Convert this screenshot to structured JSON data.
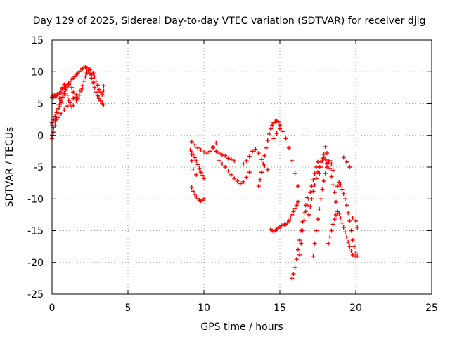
{
  "chart_data": {
    "type": "scatter",
    "title": "Day 129 of 2025, Sidereal Day-to-day VTEC variation (SDTVAR) for receiver djig",
    "xlabel": "GPS time / hours",
    "ylabel": "SDTVAR / TECUs",
    "xlim": [
      0,
      25
    ],
    "ylim": [
      -25,
      15
    ],
    "xticks": [
      0,
      5,
      10,
      15,
      20,
      25
    ],
    "yticks": [
      15,
      10,
      5,
      0,
      -5,
      -10,
      -15,
      -20,
      -25
    ],
    "grid": true,
    "marker": "plus",
    "color": "#ff0000",
    "series": [
      {
        "x": [
          0.0,
          0.05,
          0.1,
          0.15,
          0.2,
          0.25,
          0.3,
          0.35,
          0.4,
          0.5,
          0.6,
          0.7,
          0.8,
          0.9,
          1.0,
          1.1,
          1.2,
          1.3,
          1.4,
          1.5,
          1.6,
          1.7,
          1.8,
          1.9,
          2.0,
          2.1,
          2.2,
          2.3,
          2.4,
          2.5,
          2.6,
          2.7,
          2.8,
          2.9,
          3.0,
          3.1,
          3.2,
          3.3,
          3.4,
          0.0,
          0.1,
          0.2,
          0.3,
          0.4,
          0.5,
          0.6,
          0.7,
          0.8,
          0.9,
          1.0,
          1.1,
          1.2,
          1.3,
          1.4,
          1.5,
          1.6,
          1.7,
          1.8,
          1.9,
          2.0,
          2.1,
          2.2,
          2.3,
          2.4,
          2.5,
          0.0,
          0.1,
          0.2,
          0.3,
          0.4,
          0.5,
          0.6,
          0.7,
          0.8,
          0.9,
          1.0,
          1.1,
          1.2,
          1.3,
          1.4,
          0.0,
          0.1,
          0.2,
          0.3,
          0.4,
          0.5,
          0.6,
          0.7,
          0.8,
          0.9,
          1.0,
          0.0,
          0.2,
          0.4,
          0.6,
          0.8,
          1.0,
          1.2,
          1.4,
          1.6,
          1.8,
          2.0,
          2.6,
          2.7,
          2.8,
          2.9,
          3.0,
          3.1,
          3.2,
          3.3,
          3.4,
          3.4,
          9.1,
          9.2,
          9.3,
          9.4,
          9.5,
          9.6,
          9.7,
          9.8,
          9.9,
          10.0,
          9.2,
          9.3,
          9.4,
          9.5,
          9.6,
          9.7,
          9.8,
          9.9,
          10.0,
          9.2,
          9.4,
          9.6,
          9.8,
          10.0,
          10.2,
          10.4,
          10.6,
          10.8,
          9.2,
          9.2,
          9.3,
          9.5,
          10.6,
          10.8,
          11.0,
          11.2,
          11.4,
          11.6,
          11.8,
          12.0,
          11.0,
          11.2,
          11.4,
          11.6,
          11.8,
          12.0,
          12.2,
          12.4,
          12.6,
          12.8,
          13.0,
          12.6,
          12.8,
          13.0,
          13.2,
          13.4,
          13.6,
          13.8,
          14.0,
          14.2,
          13.6,
          13.7,
          13.8,
          13.9,
          14.0,
          14.1,
          14.2,
          14.3,
          14.4,
          14.5,
          14.6,
          14.7,
          14.8,
          14.9,
          15.0,
          14.4,
          14.5,
          14.6,
          14.7,
          14.8,
          14.9,
          15.0,
          15.1,
          15.2,
          15.3,
          15.4,
          15.5,
          15.6,
          15.7,
          15.8,
          15.9,
          16.0,
          16.1,
          16.2,
          14.6,
          14.8,
          15.0,
          15.2,
          15.4,
          15.6,
          15.8,
          16.0,
          16.2,
          15.8,
          15.9,
          16.0,
          16.1,
          16.2,
          16.3,
          16.4,
          16.5,
          16.6,
          16.7,
          16.8,
          16.3,
          16.4,
          16.5,
          16.6,
          16.7,
          16.8,
          16.9,
          17.0,
          17.1,
          17.2,
          17.3,
          17.4,
          17.5,
          16.9,
          17.0,
          17.1,
          17.2,
          17.3,
          17.4,
          17.5,
          17.6,
          17.7,
          17.8,
          17.9,
          18.0,
          18.1,
          17.2,
          17.3,
          17.4,
          17.5,
          17.6,
          17.7,
          17.8,
          17.9,
          18.0,
          18.1,
          18.2,
          18.3,
          18.4,
          18.5,
          17.6,
          17.7,
          17.8,
          17.9,
          18.0,
          18.1,
          18.2,
          18.3,
          18.4,
          18.5,
          18.6,
          18.7,
          18.8,
          18.2,
          18.3,
          18.4,
          18.5,
          18.6,
          18.7,
          18.8,
          18.9,
          19.0,
          19.1,
          19.2,
          19.3,
          19.4,
          19.5,
          19.6,
          19.7,
          19.8,
          19.9,
          20.0,
          18.8,
          18.9,
          19.0,
          19.1,
          19.2,
          19.3,
          19.4,
          19.5,
          19.6,
          19.7,
          19.8,
          19.9,
          20.0,
          20.1,
          19.2,
          19.4,
          19.6,
          19.8,
          20.0,
          20.1
        ],
        "y": [
          6.0,
          6.2,
          6.0,
          6.3,
          6.1,
          6.4,
          6.2,
          6.5,
          6.4,
          6.7,
          7.0,
          7.3,
          7.5,
          7.8,
          8.0,
          8.2,
          8.5,
          8.8,
          9.0,
          9.3,
          9.5,
          9.8,
          10.0,
          10.3,
          10.5,
          10.7,
          10.8,
          10.6,
          10.2,
          9.7,
          9.0,
          8.3,
          7.5,
          6.8,
          6.2,
          5.8,
          5.4,
          5.0,
          4.8,
          -0.5,
          0.5,
          1.5,
          2.5,
          3.5,
          4.5,
          5.2,
          6.0,
          6.5,
          7.2,
          7.6,
          8.0,
          8.1,
          7.5,
          6.8,
          6.0,
          5.5,
          5.8,
          6.3,
          7.0,
          7.8,
          8.5,
          9.2,
          9.8,
          10.2,
          10.4,
          0.0,
          1.2,
          2.4,
          3.6,
          4.8,
          5.8,
          6.7,
          7.5,
          8.0,
          7.2,
          6.3,
          5.5,
          4.8,
          4.5,
          4.7,
          2.0,
          2.5,
          3.0,
          3.6,
          4.2,
          4.8,
          5.4,
          6.0,
          6.6,
          7.2,
          7.8,
          1.5,
          2.2,
          2.8,
          3.4,
          4.0,
          4.6,
          5.2,
          5.8,
          6.4,
          7.0,
          7.4,
          9.5,
          9.8,
          9.2,
          8.5,
          7.9,
          7.2,
          6.8,
          6.4,
          7.0,
          7.8,
          -2.3,
          -2.6,
          -3.0,
          -3.5,
          -4.0,
          -4.6,
          -5.2,
          -5.8,
          -6.3,
          -6.8,
          -8.2,
          -8.8,
          -9.3,
          -9.7,
          -10.0,
          -10.2,
          -10.3,
          -10.2,
          -10.0,
          -1.0,
          -1.5,
          -2.0,
          -2.3,
          -2.6,
          -2.8,
          -2.5,
          -1.8,
          -1.2,
          -3.0,
          -4.0,
          -5.3,
          -6.2,
          -2.0,
          -2.5,
          -2.8,
          -3.1,
          -3.2,
          -3.6,
          -3.8,
          -4.0,
          -4.0,
          -4.5,
          -5.0,
          -5.6,
          -6.2,
          -6.8,
          -7.2,
          -7.6,
          -7.3,
          -6.6,
          -5.8,
          -4.5,
          -4.0,
          -3.3,
          -2.5,
          -2.2,
          -2.8,
          -3.8,
          -4.8,
          -5.4,
          -8.0,
          -7.0,
          -5.8,
          -4.5,
          -3.2,
          -2.0,
          -0.8,
          0.2,
          1.0,
          1.6,
          2.0,
          2.2,
          2.3,
          2.1,
          1.6,
          -14.8,
          -15.0,
          -15.2,
          -15.0,
          -14.8,
          -14.6,
          -14.4,
          -14.2,
          -14.2,
          -14.0,
          -14.0,
          -13.8,
          -13.5,
          -13.0,
          -12.5,
          -12.0,
          -11.5,
          -11.0,
          -10.5,
          -0.5,
          0.3,
          1.0,
          0.6,
          -0.5,
          -2.0,
          -4.0,
          -6.0,
          -8.0,
          -22.5,
          -21.8,
          -20.8,
          -19.5,
          -18.0,
          -16.5,
          -15.0,
          -13.6,
          -12.2,
          -11.0,
          -9.8,
          -18.8,
          -17.0,
          -15.0,
          -13.4,
          -12.0,
          -11.0,
          -10.0,
          -9.0,
          -8.0,
          -7.0,
          -6.0,
          -5.0,
          -4.2,
          -12.5,
          -11.2,
          -10.0,
          -8.8,
          -7.8,
          -6.8,
          -5.8,
          -5.0,
          -4.2,
          -3.7,
          -3.5,
          -3.8,
          -4.4,
          -19.0,
          -17.0,
          -15.0,
          -13.2,
          -11.6,
          -10.0,
          -8.5,
          -7.2,
          -6.0,
          -5.0,
          -4.3,
          -4.0,
          -4.5,
          -5.5,
          -6.0,
          -5.0,
          -4.0,
          -3.0,
          -1.8,
          -2.8,
          -4.0,
          -5.2,
          -6.5,
          -7.8,
          -9.0,
          -10.5,
          -12.0,
          -17.0,
          -16.0,
          -15.0,
          -14.0,
          -13.2,
          -12.5,
          -12.0,
          -12.3,
          -13.0,
          -13.8,
          -14.5,
          -15.2,
          -16.0,
          -16.8,
          -17.5,
          -18.2,
          -18.8,
          -19.0,
          -19.0,
          -8.0,
          -7.4,
          -7.8,
          -8.5,
          -9.2,
          -10.0,
          -11.0,
          -12.2,
          -13.5,
          -15.0,
          -16.5,
          -17.5,
          -18.5,
          -19.0,
          -3.5,
          -4.2,
          -5.0,
          -13.0,
          -13.5,
          -14.5
        ]
      }
    ]
  }
}
